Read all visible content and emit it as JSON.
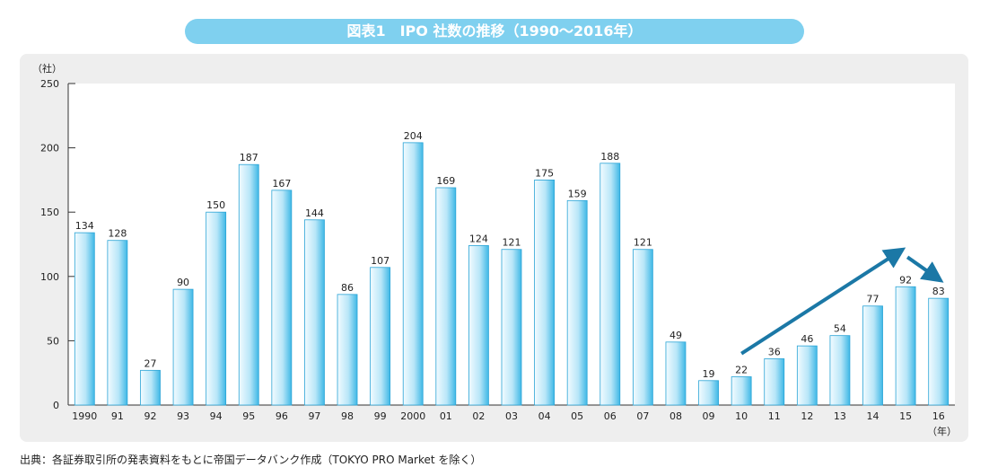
{
  "title": "図表1　IPO 社数の推移（1990～2016年）",
  "source": "出典：各証券取引所の発表資料をもとに帝国データバンク作成（TOKYO PRO Market を除く）",
  "chart_data": {
    "type": "bar",
    "ylabel": "（社）",
    "xunit": "（年）",
    "ylim": [
      0,
      250
    ],
    "yticks": [
      0,
      50,
      100,
      150,
      200,
      250
    ],
    "categories": [
      "1990",
      "91",
      "92",
      "93",
      "94",
      "95",
      "96",
      "97",
      "98",
      "99",
      "2000",
      "01",
      "02",
      "03",
      "04",
      "05",
      "06",
      "07",
      "08",
      "09",
      "10",
      "11",
      "12",
      "13",
      "14",
      "15",
      "16"
    ],
    "values": [
      134,
      128,
      27,
      90,
      150,
      187,
      167,
      144,
      86,
      107,
      204,
      169,
      124,
      121,
      175,
      159,
      188,
      121,
      49,
      19,
      22,
      36,
      46,
      54,
      77,
      92,
      83
    ],
    "colors": {
      "bar_light": "#e6f6fd",
      "bar_dark": "#3fb8e6",
      "arrow": "#1b78a6"
    },
    "annotations": [
      {
        "type": "arrow",
        "from": "10",
        "to": "15",
        "trend": "up"
      },
      {
        "type": "arrow",
        "from": "15",
        "to": "16",
        "trend": "down"
      }
    ]
  }
}
